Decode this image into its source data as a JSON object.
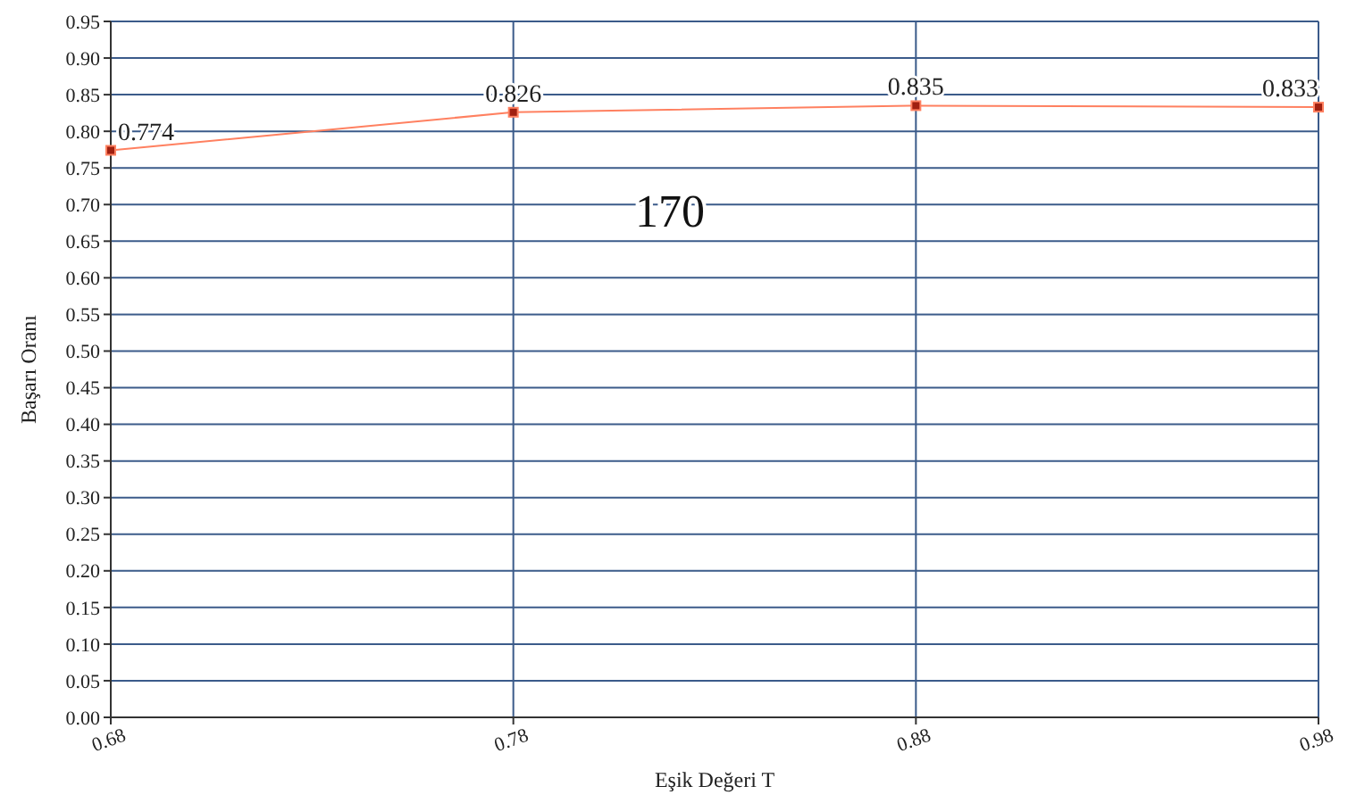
{
  "chart_data": {
    "type": "line",
    "xlabel": "Eşik Değeri T",
    "ylabel": "Başarı Oranı",
    "x": [
      0.68,
      0.78,
      0.88,
      0.98
    ],
    "series": [
      {
        "color": "#ff8060",
        "values": [
          0.774,
          0.826,
          0.835,
          0.833
        ]
      }
    ],
    "xlim": [
      0.68,
      0.98
    ],
    "xticks": [
      0.68,
      0.78,
      0.88,
      0.98
    ],
    "ylim": [
      0,
      0.95
    ],
    "yticks": [
      {
        "value": 0,
        "label": "0.00"
      },
      0.05,
      {
        "value": 0.1,
        "label": "0.10"
      },
      0.15,
      {
        "value": 0.2,
        "label": "0.20"
      },
      0.25,
      {
        "value": 0.3,
        "label": "0.30"
      },
      0.35,
      {
        "value": 0.4,
        "label": "0.40"
      },
      0.45,
      {
        "value": 0.5,
        "label": "0.50"
      },
      0.55,
      {
        "value": 0.6,
        "label": "0.60"
      },
      0.65,
      {
        "value": 0.7,
        "label": "0.70"
      },
      0.75,
      {
        "value": 0.8,
        "label": "0.80"
      },
      0.85,
      {
        "value": 0.9,
        "label": "0.90"
      },
      0.95
    ],
    "grid": true,
    "marker": "square",
    "line_style": "solid",
    "data_labels": true,
    "annotations": [
      "170"
    ]
  }
}
